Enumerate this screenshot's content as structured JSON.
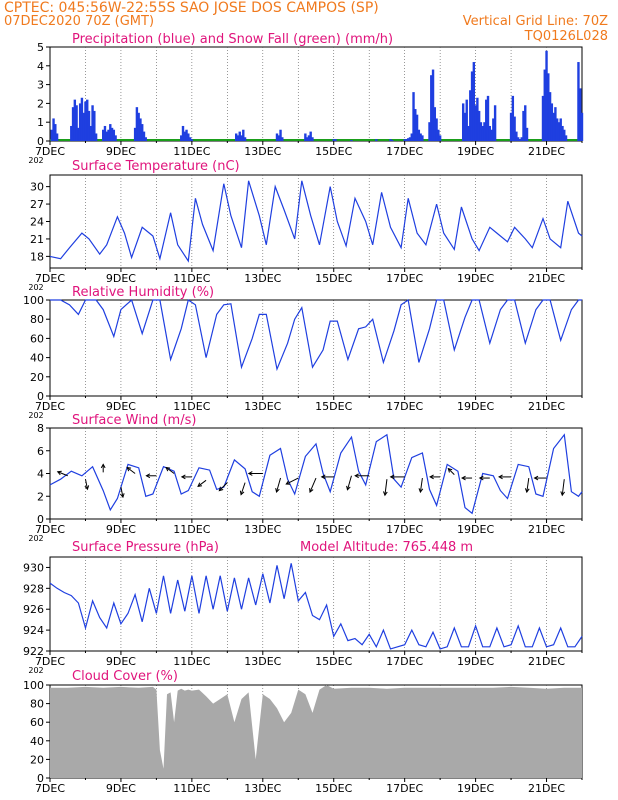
{
  "header": {
    "left_line1": "CPTEC:   045:56W-22:55S   SAO JOSE DOS CAMPOS (SP)",
    "left_line2": "07DEC2020 70Z (GMT)",
    "right_line1": "Vertical Grid Line: 70Z",
    "right_line2": "TQ0126L028"
  },
  "colors": {
    "header": "#f07a1e",
    "title": "#e0147c",
    "series": "#1f3fe0",
    "snow": "#1a9e1a",
    "cloud": "#a9a9a9",
    "frame": "#000000",
    "grid": "#000000"
  },
  "x_axis": {
    "tick_labels": [
      "7DEC",
      "9DEC",
      "11DEC",
      "13DEC",
      "15DEC",
      "17DEC",
      "19DEC",
      "21DEC"
    ],
    "year_fragment": "202",
    "range_days": [
      0,
      15
    ]
  },
  "chart_data": [
    {
      "type": "bar",
      "title": "Precipitation (blue) and Snow Fall (green) (mm/h)",
      "ylim": [
        0,
        5
      ],
      "yticks": [
        0,
        1,
        2,
        3,
        4,
        5
      ],
      "series": [
        {
          "name": "Precipitation",
          "x": [
            0.05,
            0.1,
            0.15,
            0.2,
            0.6,
            0.65,
            0.7,
            0.75,
            0.8,
            0.85,
            0.9,
            0.95,
            1.0,
            1.05,
            1.1,
            1.15,
            1.2,
            1.25,
            1.3,
            1.5,
            1.55,
            1.6,
            1.65,
            1.7,
            1.75,
            1.8,
            1.85,
            2.4,
            2.45,
            2.5,
            2.55,
            2.6,
            2.65,
            2.7,
            3.7,
            3.75,
            3.8,
            3.85,
            3.9,
            3.95,
            4.0,
            5.25,
            5.3,
            5.35,
            5.4,
            5.45,
            5.5,
            6.4,
            6.45,
            6.5,
            6.55,
            7.2,
            7.25,
            7.3,
            7.35,
            7.4,
            8.0,
            8.05,
            8.5,
            9.2,
            9.6,
            9.65,
            10.0,
            10.05,
            10.1,
            10.15,
            10.2,
            10.25,
            10.3,
            10.35,
            10.4,
            10.45,
            10.5,
            10.7,
            10.75,
            10.8,
            10.85,
            10.9,
            10.95,
            11.0,
            11.65,
            11.7,
            11.75,
            11.8,
            11.85,
            11.9,
            11.95,
            12.0,
            12.05,
            12.1,
            12.15,
            12.2,
            12.25,
            12.3,
            12.35,
            12.4,
            12.45,
            12.5,
            12.55,
            13.0,
            13.05,
            13.1,
            13.15,
            13.2,
            13.25,
            13.3,
            13.35,
            13.4,
            13.45,
            13.9,
            13.95,
            14.0,
            14.05,
            14.1,
            14.15,
            14.2,
            14.25,
            14.3,
            14.35,
            14.4,
            14.45,
            14.5,
            14.55,
            14.9,
            14.95,
            15.0
          ],
          "values": [
            0.6,
            1.2,
            0.9,
            0.4,
            0.8,
            1.8,
            2.2,
            1.9,
            0.7,
            2.0,
            2.3,
            1.5,
            2.1,
            2.2,
            1.6,
            0.8,
            1.9,
            1.6,
            0.4,
            0.6,
            0.8,
            0.5,
            0.6,
            0.9,
            0.7,
            0.6,
            0.3,
            0.7,
            1.8,
            1.5,
            1.2,
            0.9,
            0.5,
            0.2,
            0.3,
            0.8,
            0.5,
            0.6,
            0.4,
            0.2,
            0.1,
            0.4,
            0.3,
            0.5,
            0.3,
            0.6,
            0.2,
            0.4,
            0.3,
            0.6,
            0.2,
            0.4,
            0.2,
            0.3,
            0.5,
            0.2,
            0.1,
            0.1,
            0.05,
            0.1,
            0.1,
            0.05,
            0.1,
            0.1,
            0.15,
            0.2,
            0.4,
            2.6,
            1.7,
            1.4,
            0.6,
            0.4,
            0.3,
            1.0,
            3.5,
            3.8,
            1.8,
            1.2,
            0.6,
            0.3,
            2.0,
            1.5,
            2.2,
            0.8,
            2.7,
            3.7,
            4.2,
            1.9,
            2.3,
            1.6,
            1.0,
            0.8,
            1.0,
            2.2,
            2.4,
            0.8,
            0.6,
            1.2,
            1.9,
            1.5,
            2.4,
            1.3,
            0.5,
            0.2,
            0.1,
            0.2,
            1.6,
            1.9,
            0.7,
            2.4,
            3.8,
            4.8,
            3.6,
            2.6,
            2.0,
            1.5,
            1.8,
            1.2,
            1.0,
            1.2,
            0.8,
            0.6,
            0.3,
            4.2,
            2.8,
            1.5
          ]
        },
        {
          "name": "Snow Fall",
          "values": [
            0
          ]
        }
      ]
    },
    {
      "type": "line",
      "title": "Surface Temperature (nC)",
      "ylim": [
        16,
        32
      ],
      "yticks": [
        18,
        21,
        24,
        27,
        30
      ],
      "series": [
        {
          "name": "Temperature",
          "x": [
            0,
            0.3,
            0.55,
            0.9,
            1.1,
            1.4,
            1.6,
            1.9,
            2.1,
            2.3,
            2.6,
            2.9,
            3.1,
            3.4,
            3.6,
            3.9,
            4.1,
            4.3,
            4.6,
            4.9,
            5.1,
            5.4,
            5.6,
            5.9,
            6.1,
            6.35,
            6.6,
            6.9,
            7.1,
            7.35,
            7.6,
            7.9,
            8.1,
            8.35,
            8.6,
            8.9,
            9.1,
            9.35,
            9.6,
            9.9,
            10.1,
            10.35,
            10.6,
            10.9,
            11.1,
            11.4,
            11.6,
            11.9,
            12.1,
            12.4,
            12.6,
            12.9,
            13.1,
            13.4,
            13.6,
            13.9,
            14.1,
            14.4,
            14.6,
            14.9,
            15.0
          ],
          "values": [
            18,
            17.6,
            19.5,
            22,
            21,
            18.4,
            20,
            24.8,
            22,
            17.8,
            23,
            21.5,
            17.6,
            25.5,
            20,
            17.2,
            28,
            23.5,
            19,
            30.5,
            25,
            19.5,
            31,
            25,
            20,
            30,
            26,
            21,
            31,
            25,
            20,
            30,
            24,
            19.8,
            28,
            24,
            20,
            29,
            23,
            19.5,
            28,
            22,
            20,
            27,
            22,
            19.2,
            26.5,
            21,
            19,
            23,
            22,
            20.5,
            23,
            21,
            19.5,
            24.5,
            21,
            19.5,
            27.5,
            22,
            21.5
          ]
        }
      ]
    },
    {
      "type": "line",
      "title": "Relative Humidity (%)",
      "ylim": [
        0,
        100
      ],
      "yticks": [
        0,
        20,
        40,
        60,
        80,
        100
      ],
      "series": [
        {
          "name": "Relative Humidity",
          "x": [
            0,
            0.3,
            0.55,
            0.8,
            1.0,
            1.3,
            1.5,
            1.8,
            2.0,
            2.3,
            2.6,
            2.9,
            3.1,
            3.4,
            3.7,
            3.9,
            4.1,
            4.4,
            4.7,
            4.9,
            5.1,
            5.4,
            5.7,
            5.9,
            6.1,
            6.4,
            6.7,
            6.9,
            7.1,
            7.4,
            7.7,
            7.9,
            8.1,
            8.4,
            8.7,
            8.9,
            9.1,
            9.4,
            9.7,
            9.9,
            10.1,
            10.4,
            10.7,
            10.9,
            11.1,
            11.4,
            11.7,
            11.9,
            12.1,
            12.4,
            12.7,
            12.9,
            13.1,
            13.4,
            13.7,
            13.9,
            14.1,
            14.4,
            14.7,
            14.9,
            15.0
          ],
          "values": [
            100,
            100,
            95,
            85,
            100,
            100,
            90,
            62,
            90,
            100,
            65,
            100,
            100,
            38,
            70,
            100,
            95,
            40,
            85,
            95,
            96,
            30,
            60,
            85,
            85,
            28,
            55,
            80,
            92,
            30,
            48,
            78,
            78,
            38,
            70,
            72,
            80,
            35,
            68,
            95,
            100,
            35,
            70,
            100,
            100,
            48,
            82,
            100,
            100,
            55,
            90,
            100,
            100,
            55,
            90,
            100,
            100,
            58,
            90,
            100,
            100
          ]
        }
      ]
    },
    {
      "type": "line",
      "title": "Surface Wind (m/s)",
      "ylim": [
        0,
        8
      ],
      "yticks": [
        0,
        2,
        4,
        6,
        8
      ],
      "series": [
        {
          "name": "Wind speed",
          "x": [
            0,
            0.3,
            0.6,
            0.9,
            1.2,
            1.5,
            1.7,
            1.9,
            2.2,
            2.5,
            2.7,
            2.9,
            3.2,
            3.5,
            3.7,
            3.9,
            4.2,
            4.5,
            4.7,
            4.9,
            5.2,
            5.5,
            5.7,
            5.9,
            6.2,
            6.5,
            6.7,
            6.9,
            7.2,
            7.5,
            7.7,
            7.9,
            8.2,
            8.5,
            8.7,
            8.9,
            9.2,
            9.5,
            9.7,
            9.9,
            10.2,
            10.5,
            10.7,
            10.9,
            11.2,
            11.5,
            11.7,
            11.9,
            12.2,
            12.5,
            12.7,
            12.9,
            13.2,
            13.5,
            13.7,
            13.9,
            14.2,
            14.5,
            14.7,
            14.9,
            15.0
          ],
          "values": [
            3,
            3.5,
            4.2,
            3.8,
            4.6,
            2.5,
            0.8,
            1.8,
            4.8,
            4.5,
            2.0,
            2.2,
            4.6,
            4.2,
            2.2,
            2.5,
            4.5,
            4.3,
            2.6,
            2.8,
            5.2,
            4.4,
            2.4,
            2.0,
            5.6,
            6.2,
            3.5,
            2.2,
            5.5,
            6.6,
            4.0,
            2.4,
            5.8,
            7.2,
            4.2,
            3.0,
            6.8,
            7.4,
            3.5,
            2.8,
            5.4,
            5.8,
            2.6,
            1.2,
            4.8,
            4.2,
            1.0,
            0.5,
            4.0,
            3.8,
            2.5,
            1.8,
            4.8,
            4.6,
            2.2,
            2.0,
            6.2,
            7.4,
            2.4,
            2.0,
            2.4
          ]
        }
      ]
    },
    {
      "type": "line",
      "title": "Surface Pressure (hPa)",
      "annotation": "Model Altitude: 765.448  m",
      "ylim": [
        922,
        931
      ],
      "yticks": [
        922,
        924,
        926,
        928,
        930
      ],
      "series": [
        {
          "name": "Pressure",
          "x": [
            0,
            0.2,
            0.4,
            0.6,
            0.8,
            1.0,
            1.2,
            1.4,
            1.6,
            1.8,
            2.0,
            2.2,
            2.4,
            2.6,
            2.8,
            3.0,
            3.2,
            3.4,
            3.6,
            3.8,
            4.0,
            4.2,
            4.4,
            4.6,
            4.8,
            5.0,
            5.2,
            5.4,
            5.6,
            5.8,
            6.0,
            6.2,
            6.4,
            6.6,
            6.8,
            7.0,
            7.2,
            7.4,
            7.6,
            7.8,
            8.0,
            8.2,
            8.4,
            8.6,
            8.8,
            9.0,
            9.2,
            9.4,
            9.6,
            9.8,
            10.0,
            10.2,
            10.4,
            10.6,
            10.8,
            11.0,
            11.2,
            11.4,
            11.6,
            11.8,
            12.0,
            12.2,
            12.4,
            12.6,
            12.8,
            13.0,
            13.2,
            13.4,
            13.6,
            13.8,
            14.0,
            14.2,
            14.4,
            14.6,
            14.8,
            15.0
          ],
          "values": [
            928.5,
            928,
            927.6,
            927.3,
            926.6,
            924.2,
            926.8,
            925.2,
            924.2,
            926.6,
            924.6,
            925.6,
            927.4,
            924.8,
            928,
            925.6,
            929.2,
            925.6,
            928.8,
            925.8,
            929.2,
            925.6,
            929.2,
            926,
            929.2,
            925.8,
            929,
            926,
            929,
            926.4,
            929.4,
            926.6,
            930.2,
            927,
            930.4,
            926.8,
            927.6,
            925.4,
            925,
            926.4,
            923.4,
            924.6,
            923,
            923.2,
            922.6,
            923.6,
            922.4,
            924,
            922.2,
            922.4,
            922.6,
            924,
            922.6,
            922.4,
            923.8,
            922.2,
            922.4,
            924.2,
            922.4,
            922.4,
            924.4,
            922.4,
            922.4,
            924.2,
            922.4,
            922.6,
            924.4,
            922.4,
            922.4,
            924.2,
            922.4,
            922.6,
            924.2,
            922.4,
            922.4,
            923.4
          ]
        }
      ]
    },
    {
      "type": "area",
      "title": "Cloud Cover (%)",
      "ylim": [
        0,
        100
      ],
      "yticks": [
        0,
        20,
        40,
        60,
        80,
        100
      ],
      "series": [
        {
          "name": "Cloud cover",
          "x": [
            0,
            0.5,
            1.0,
            1.5,
            2.0,
            2.5,
            2.9,
            3.0,
            3.1,
            3.2,
            3.3,
            3.4,
            3.5,
            3.6,
            3.7,
            3.8,
            3.9,
            4.0,
            4.2,
            4.4,
            4.6,
            4.8,
            5.0,
            5.2,
            5.4,
            5.6,
            5.8,
            6.0,
            6.2,
            6.4,
            6.6,
            6.8,
            7.0,
            7.2,
            7.4,
            7.6,
            7.8,
            8.0,
            8.5,
            9.0,
            9.5,
            10.0,
            10.5,
            11.0,
            11.5,
            12.0,
            12.5,
            13.0,
            13.5,
            14.0,
            14.5,
            15.0
          ],
          "values": [
            97,
            97,
            98,
            97,
            98,
            97,
            98,
            95,
            30,
            10,
            90,
            92,
            60,
            94,
            96,
            94,
            95,
            94,
            95,
            88,
            80,
            85,
            90,
            60,
            85,
            92,
            20,
            90,
            85,
            75,
            60,
            70,
            95,
            90,
            70,
            95,
            100,
            96,
            97,
            97,
            96,
            97,
            97,
            97,
            97,
            97,
            97,
            98,
            97,
            96,
            97,
            97
          ]
        }
      ]
    }
  ]
}
